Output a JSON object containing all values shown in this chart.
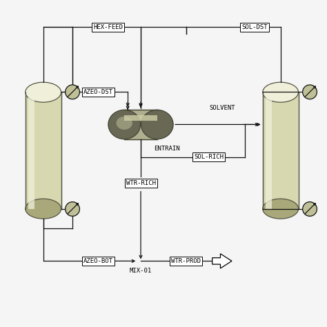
{
  "bg_color": "#f5f5f5",
  "line_color": "#111111",
  "col_body": "#d8d8b0",
  "col_hl": "#efefda",
  "col_dk": "#a8a87a",
  "col_edge": "#555545",
  "ent_body": "#b0b090",
  "ent_hl": "#d0d0a8",
  "ent_dk": "#686855",
  "ent_edge": "#444435",
  "valve_fill": "#c0c098",
  "labels": {
    "HEX_FEED": "HEX-FEED",
    "AZEO_DST": "AZEO-DST",
    "AZEO_BOT": "AZEO-BOT",
    "MIX_01": "MIX-01",
    "WTR_RICH": "WTR-RICH",
    "WTR_PROD": "WTR-PROD",
    "SOL_RICH": "SOL-RICH",
    "SOL_DST": "SOL-DST",
    "SOLVENT": "SOLVENT",
    "ENTRAIN": "ENTRAIN"
  },
  "fontsize": 6.5
}
